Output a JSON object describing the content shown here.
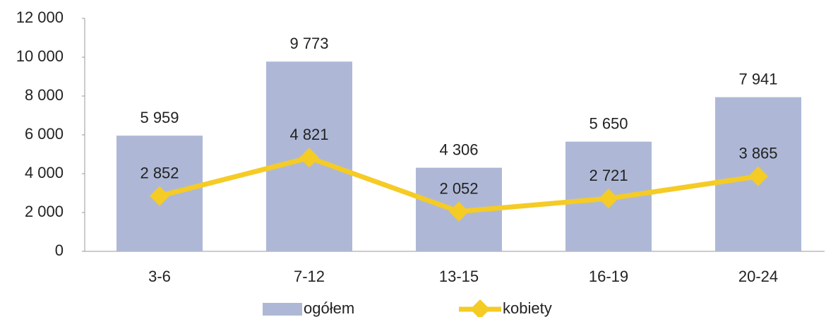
{
  "chart_data": {
    "type": "bar",
    "categories": [
      "3-6",
      "7-12",
      "13-15",
      "16-19",
      "20-24"
    ],
    "series": [
      {
        "name": "ogółem",
        "type": "bar",
        "color": "#aeb8d6",
        "values": [
          5959,
          9773,
          4306,
          5650,
          7941
        ],
        "value_labels": [
          "5 959",
          "9 773",
          "4 306",
          "5 650",
          "7 941"
        ]
      },
      {
        "name": "kobiety",
        "type": "line",
        "color": "#f5cb25",
        "values": [
          2852,
          4821,
          2052,
          2721,
          3865
        ],
        "value_labels": [
          "2 852",
          "4 821",
          "2 052",
          "2 721",
          "3 865"
        ]
      }
    ],
    "ylim": [
      0,
      12000
    ],
    "yticks": [
      0,
      {
        "value": 2000,
        "label": "2 000"
      },
      {
        "value": 4000,
        "label": "4 000"
      },
      {
        "value": 6000,
        "label": "6 000"
      },
      {
        "value": 8000,
        "label": "8 000"
      },
      {
        "value": 10000,
        "label": "10 000"
      },
      {
        "value": 12000,
        "label": "12 000"
      }
    ],
    "legend": "bottom"
  }
}
